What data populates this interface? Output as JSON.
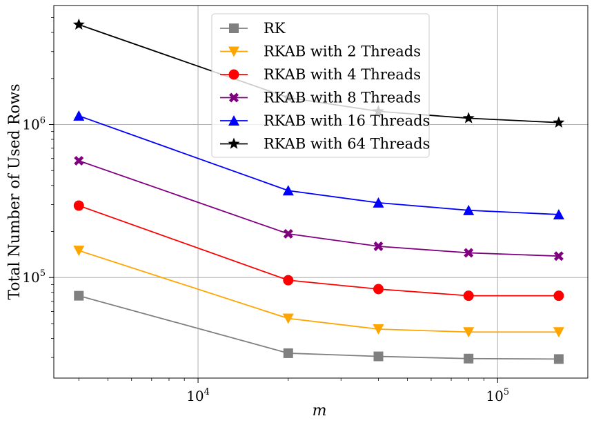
{
  "chart_data": {
    "type": "line",
    "xlabel": "m",
    "ylabel": "Total Number of Used Rows",
    "x_scale": "log",
    "y_scale": "log",
    "xlim": [
      3300,
      200000
    ],
    "ylim": [
      22000,
      6000000
    ],
    "x_ticks": [
      {
        "value": 10000,
        "base": "10",
        "exp": "4"
      },
      {
        "value": 100000,
        "base": "10",
        "exp": "5"
      }
    ],
    "y_ticks": [
      {
        "value": 100000,
        "base": "10",
        "exp": "5"
      },
      {
        "value": 1000000,
        "base": "10",
        "exp": "6"
      }
    ],
    "grid": true,
    "legend_position": "top-center",
    "x": [
      4000,
      20000,
      40000,
      80000,
      160000
    ],
    "series": [
      {
        "name": "RK",
        "color": "#808080",
        "marker": "square",
        "values": [
          76000,
          32000,
          30500,
          29500,
          29300
        ]
      },
      {
        "name": "RKAB with 2 Threads",
        "color": "#FFA500",
        "marker": "triangle-down",
        "values": [
          150000,
          54000,
          46000,
          44000,
          44000
        ]
      },
      {
        "name": "RKAB with 4 Threads",
        "color": "#FF0000",
        "marker": "circle",
        "values": [
          295000,
          96000,
          84000,
          76000,
          76000
        ]
      },
      {
        "name": "RKAB with 8 Threads",
        "color": "#800080",
        "marker": "x",
        "values": [
          580000,
          193000,
          160000,
          145000,
          138000
        ]
      },
      {
        "name": "RKAB with 16 Threads",
        "color": "#0000FF",
        "marker": "triangle-up",
        "values": [
          1140000,
          370000,
          308000,
          275000,
          258000
        ]
      },
      {
        "name": "RKAB with 64 Threads",
        "color": "#000000",
        "marker": "star",
        "values": [
          4500000,
          1500000,
          1220000,
          1100000,
          1030000
        ]
      }
    ]
  }
}
